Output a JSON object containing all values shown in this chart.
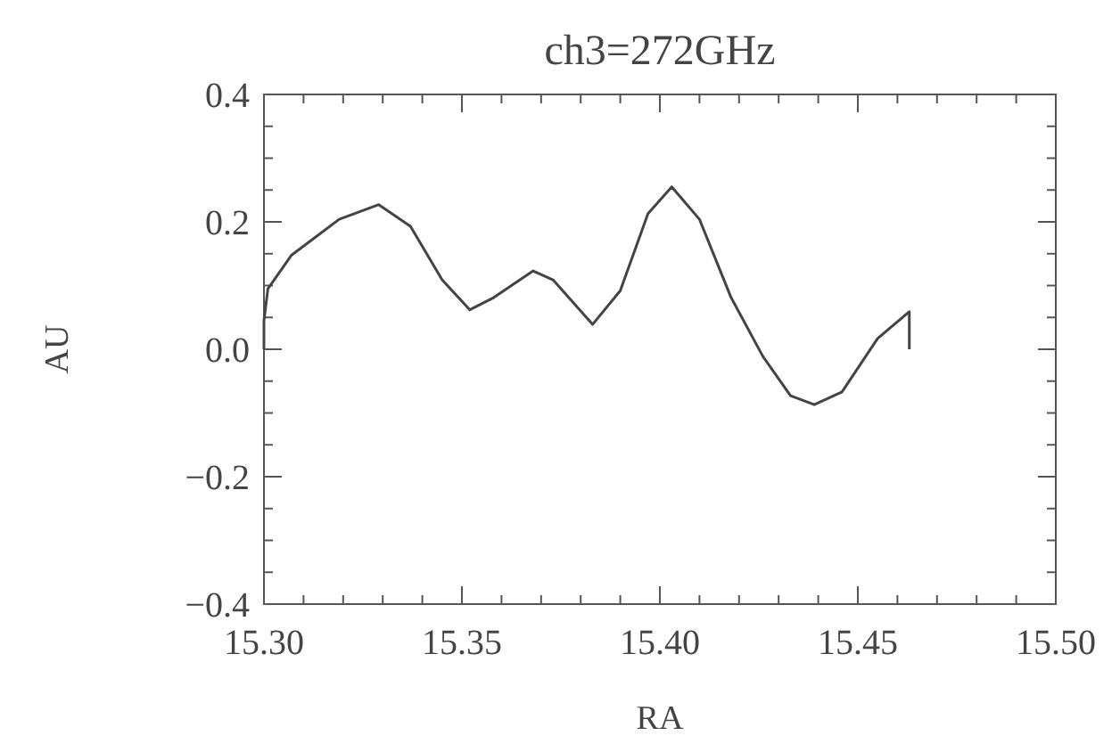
{
  "chart_data": {
    "type": "line",
    "title": "ch3=272GHz",
    "xlabel": "RA",
    "ylabel": "AU",
    "x": [
      15.3,
      15.3,
      15.301,
      15.307,
      15.319,
      15.329,
      15.337,
      15.345,
      15.352,
      15.358,
      15.368,
      15.373,
      15.383,
      15.39,
      15.397,
      15.403,
      15.41,
      15.418,
      15.426,
      15.433,
      15.439,
      15.446,
      15.455,
      15.463,
      15.463
    ],
    "series": [
      {
        "color": "#444444",
        "values": [
          0.0,
          0.045,
          0.095,
          0.148,
          0.204,
          0.227,
          0.193,
          0.109,
          0.062,
          0.081,
          0.123,
          0.109,
          0.039,
          0.092,
          0.213,
          0.255,
          0.204,
          0.081,
          -0.011,
          -0.073,
          -0.087,
          -0.067,
          0.017,
          0.059,
          0.0
        ]
      }
    ],
    "xlim": [
      15.3,
      15.5
    ],
    "ylim": [
      -0.4,
      0.4
    ],
    "xticks": [
      {
        "value": 15.3,
        "label": "15.30"
      },
      {
        "value": 15.31,
        "label": null
      },
      {
        "value": 15.32,
        "label": null
      },
      {
        "value": 15.33,
        "label": null
      },
      {
        "value": 15.34,
        "label": null
      },
      {
        "value": 15.35,
        "label": "15.35"
      },
      {
        "value": 15.36,
        "label": null
      },
      {
        "value": 15.37,
        "label": null
      },
      {
        "value": 15.38,
        "label": null
      },
      {
        "value": 15.39,
        "label": null
      },
      {
        "value": 15.4,
        "label": "15.40"
      },
      {
        "value": 15.41,
        "label": null
      },
      {
        "value": 15.42,
        "label": null
      },
      {
        "value": 15.43,
        "label": null
      },
      {
        "value": 15.44,
        "label": null
      },
      {
        "value": 15.45,
        "label": "15.45"
      },
      {
        "value": 15.46,
        "label": null
      },
      {
        "value": 15.47,
        "label": null
      },
      {
        "value": 15.48,
        "label": null
      },
      {
        "value": 15.49,
        "label": null
      },
      {
        "value": 15.5,
        "label": "15.50"
      }
    ],
    "yticks": [
      {
        "value": -0.4,
        "label": "−0.4"
      },
      {
        "value": -0.35,
        "label": null
      },
      {
        "value": -0.3,
        "label": null
      },
      {
        "value": -0.25,
        "label": null
      },
      {
        "value": -0.2,
        "label": "−0.2"
      },
      {
        "value": -0.15,
        "label": null
      },
      {
        "value": -0.1,
        "label": null
      },
      {
        "value": -0.05,
        "label": null
      },
      {
        "value": 0,
        "label": "0.0"
      },
      {
        "value": 0.05,
        "label": null
      },
      {
        "value": 0.1,
        "label": null
      },
      {
        "value": 0.15,
        "label": null
      },
      {
        "value": 0.2,
        "label": "0.2"
      },
      {
        "value": 0.25,
        "label": null
      },
      {
        "value": 0.3,
        "label": null
      },
      {
        "value": 0.35,
        "label": null
      },
      {
        "value": 0.4,
        "label": "0.4"
      }
    ]
  }
}
